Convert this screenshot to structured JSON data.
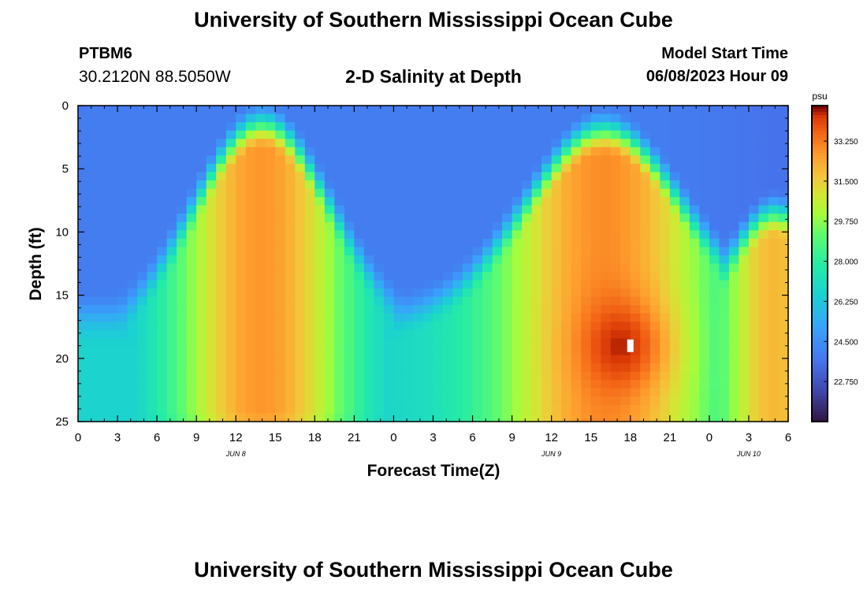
{
  "header": {
    "title": "University of Southern Mississippi Ocean Cube",
    "station_id": "PTBM6",
    "coordinates": "30.2120N  88.5050W",
    "subtitle": "2-D Salinity at Depth",
    "model_start_label": "Model Start Time",
    "model_start_value": "06/08/2023 Hour 09"
  },
  "footer": {
    "title": "University of Southern Mississippi Ocean Cube"
  },
  "colors": {
    "background": "#ffffff",
    "axis": "#000000",
    "marker": "#ffffff"
  },
  "chart_data": {
    "type": "heatmap",
    "title": "2-D Salinity at Depth",
    "xlabel": "Forecast Time(Z)",
    "ylabel": "Depth (ft)",
    "x_range_hours": [
      0,
      54
    ],
    "y_range_ft": [
      0,
      25
    ],
    "y_inverted": true,
    "x_tick_hours": [
      0,
      3,
      6,
      9,
      12,
      15,
      18,
      21,
      24,
      27,
      30,
      33,
      36,
      39,
      42,
      45,
      48,
      51,
      54
    ],
    "x_tick_labels": [
      "0",
      "3",
      "6",
      "9",
      "12",
      "15",
      "18",
      "21",
      "0",
      "3",
      "6",
      "9",
      "12",
      "15",
      "18",
      "21",
      "0",
      "3",
      "6"
    ],
    "y_ticks": [
      0,
      5,
      10,
      15,
      20,
      25
    ],
    "y_tick_labels": [
      "0",
      "5",
      "10",
      "15",
      "20",
      "25"
    ],
    "date_labels": [
      {
        "text": "JUN 8",
        "hour": 12
      },
      {
        "text": "JUN 9",
        "hour": 36
      },
      {
        "text": "JUN 10",
        "hour": 51
      }
    ],
    "colorbar": {
      "label": "psu",
      "range": [
        21.0,
        34.8
      ],
      "ticks": [
        22.75,
        24.5,
        26.25,
        28.0,
        29.75,
        31.5,
        33.25
      ],
      "tick_labels": [
        "22.750",
        "24.500",
        "26.250",
        "28.000",
        "29.750",
        "31.500",
        "33.250"
      ]
    },
    "salinity_ranges_psu": {
      "surface_low": 24.0,
      "first_maximum_mid_depth": 32.8,
      "second_maximum_near_18ft": 34.6,
      "surface_end_of_period": 23.5
    },
    "marker": {
      "hour": 42,
      "depth_ft": 19
    }
  }
}
